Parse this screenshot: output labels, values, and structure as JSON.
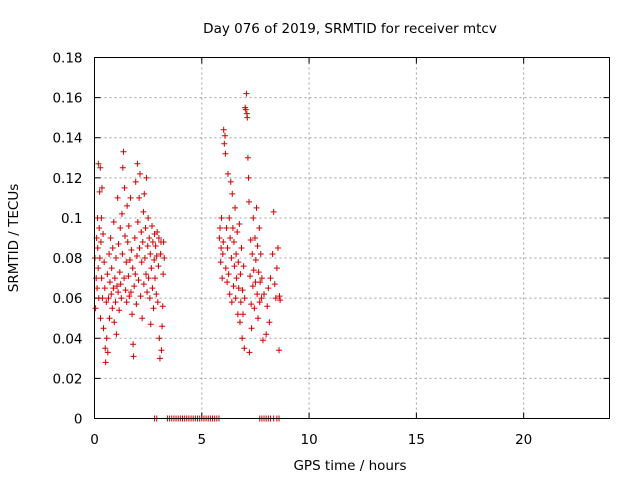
{
  "chart_data": {
    "type": "scatter",
    "title": "Day 076 of 2019, SRMTID for receiver mtcv",
    "xlabel": "GPS time / hours",
    "ylabel": "SRMTID / TECUs",
    "xlim": [
      0,
      24
    ],
    "ylim": [
      0,
      0.18
    ],
    "xticks": [
      "0",
      "5",
      "10",
      "15",
      "20"
    ],
    "yticks": [
      "0",
      "0.02",
      "0.04",
      "0.06",
      "0.08",
      "0.1",
      "0.12",
      "0.14",
      "0.16",
      "0.18"
    ],
    "grid": true,
    "marker": "plus",
    "color": "#d00000",
    "series": [
      {
        "values": [
          [
            0.02,
            0.08
          ],
          [
            0.05,
            0.055
          ],
          [
            0.08,
            0.07
          ],
          [
            0.1,
            0.09
          ],
          [
            0.12,
            0.065
          ],
          [
            0.14,
            0.1
          ],
          [
            0.15,
            0.085
          ],
          [
            0.17,
            0.075
          ],
          [
            0.18,
            0.127
          ],
          [
            0.2,
            0.06
          ],
          [
            0.22,
            0.095
          ],
          [
            0.24,
            0.113
          ],
          [
            0.25,
            0.08
          ],
          [
            0.27,
            0.125
          ],
          [
            0.28,
            0.05
          ],
          [
            0.3,
            0.088
          ],
          [
            0.32,
            0.1
          ],
          [
            0.33,
            0.07
          ],
          [
            0.35,
            0.115
          ],
          [
            0.37,
            0.06
          ],
          [
            0.4,
            0.092
          ],
          [
            0.42,
            0.045
          ],
          [
            0.45,
            0.078
          ],
          [
            0.48,
            0.065
          ],
          [
            0.5,
            0.035
          ],
          [
            0.52,
            0.028
          ],
          [
            0.55,
            0.058
          ],
          [
            0.57,
            0.04
          ],
          [
            0.6,
            0.072
          ],
          [
            0.62,
            0.033
          ],
          [
            0.65,
            0.06
          ],
          [
            0.68,
            0.082
          ],
          [
            0.7,
            0.05
          ],
          [
            0.72,
            0.068
          ],
          [
            0.75,
            0.09
          ],
          [
            0.78,
            0.062
          ],
          [
            0.8,
            0.075
          ],
          [
            0.83,
            0.055
          ],
          [
            0.85,
            0.085
          ],
          [
            0.88,
            0.065
          ],
          [
            0.9,
            0.098
          ],
          [
            0.92,
            0.048
          ],
          [
            0.95,
            0.07
          ],
          [
            0.98,
            0.058
          ],
          [
            1.0,
            0.08
          ],
          [
            1.02,
            0.042
          ],
          [
            1.05,
            0.066
          ],
          [
            1.08,
            0.11
          ],
          [
            1.1,
            0.063
          ],
          [
            1.12,
            0.087
          ],
          [
            1.15,
            0.054
          ],
          [
            1.18,
            0.073
          ],
          [
            1.2,
            0.095
          ],
          [
            1.22,
            0.067
          ],
          [
            1.25,
            0.06
          ],
          [
            1.28,
            0.102
          ],
          [
            1.3,
            0.082
          ],
          [
            1.32,
            0.125
          ],
          [
            1.35,
            0.133
          ],
          [
            1.38,
            0.07
          ],
          [
            1.4,
            0.115
          ],
          [
            1.42,
            0.091
          ],
          [
            1.45,
            0.064
          ],
          [
            1.48,
            0.078
          ],
          [
            1.5,
            0.058
          ],
          [
            1.52,
            0.106
          ],
          [
            1.55,
            0.088
          ],
          [
            1.58,
            0.071
          ],
          [
            1.6,
            0.096
          ],
          [
            1.62,
            0.061
          ],
          [
            1.65,
            0.079
          ],
          [
            1.68,
            0.11
          ],
          [
            1.7,
            0.063
          ],
          [
            1.72,
            0.084
          ],
          [
            1.75,
            0.052
          ],
          [
            1.78,
            0.075
          ],
          [
            1.8,
            0.037
          ],
          [
            1.82,
            0.031
          ],
          [
            1.85,
            0.066
          ],
          [
            1.88,
            0.09
          ],
          [
            1.9,
            0.072
          ],
          [
            1.92,
            0.118
          ],
          [
            1.95,
            0.057
          ],
          [
            1.98,
            0.081
          ],
          [
            2.0,
            0.127
          ],
          [
            2.02,
            0.098
          ],
          [
            2.05,
            0.069
          ],
          [
            2.08,
            0.11
          ],
          [
            2.1,
            0.085
          ],
          [
            2.12,
            0.122
          ],
          [
            2.15,
            0.061
          ],
          [
            2.18,
            0.093
          ],
          [
            2.2,
            0.078
          ],
          [
            2.22,
            0.05
          ],
          [
            2.25,
            0.088
          ],
          [
            2.28,
            0.103
          ],
          [
            2.3,
            0.067
          ],
          [
            2.32,
            0.112
          ],
          [
            2.35,
            0.08
          ],
          [
            2.38,
            0.095
          ],
          [
            2.4,
            0.072
          ],
          [
            2.42,
            0.12
          ],
          [
            2.45,
            0.063
          ],
          [
            2.48,
            0.086
          ],
          [
            2.5,
            0.1
          ],
          [
            2.52,
            0.07
          ],
          [
            2.55,
            0.09
          ],
          [
            2.58,
            0.06
          ],
          [
            2.6,
            0.082
          ],
          [
            2.62,
            0.047
          ],
          [
            2.65,
            0.075
          ],
          [
            2.68,
            0.096
          ],
          [
            2.7,
            0.065
          ],
          [
            2.72,
            0.088
          ],
          [
            2.75,
            0.055
          ],
          [
            2.78,
            0.079
          ],
          [
            2.8,
            0.092
          ],
          [
            2.82,
            0.07
          ],
          [
            2.85,
            0.086
          ],
          [
            2.88,
            0.062
          ],
          [
            2.9,
            0.081
          ],
          [
            2.92,
            0.093
          ],
          [
            2.95,
            0.058
          ],
          [
            2.98,
            0.076
          ],
          [
            3.0,
            0.09
          ],
          [
            3.02,
            0.04
          ],
          [
            3.05,
            0.03
          ],
          [
            3.08,
            0.082
          ],
          [
            3.1,
            0.088
          ],
          [
            3.12,
            0.034
          ],
          [
            3.15,
            0.046
          ],
          [
            3.18,
            0.056
          ],
          [
            3.2,
            0.072
          ],
          [
            3.22,
            0.088
          ],
          [
            3.25,
            0.08
          ]
        ]
      },
      {
        "values": [
          [
            5.82,
            0.09
          ],
          [
            5.85,
            0.095
          ],
          [
            5.88,
            0.078
          ],
          [
            5.9,
            0.085
          ],
          [
            5.92,
            0.1
          ],
          [
            5.95,
            0.07
          ],
          [
            5.98,
            0.082
          ],
          [
            6.0,
            0.088
          ],
          [
            6.02,
            0.144
          ],
          [
            6.05,
            0.137
          ],
          [
            6.08,
            0.141
          ],
          [
            6.1,
            0.132
          ],
          [
            6.12,
            0.075
          ],
          [
            6.15,
            0.095
          ],
          [
            6.18,
            0.068
          ],
          [
            6.2,
            0.085
          ],
          [
            6.22,
            0.122
          ],
          [
            6.25,
            0.072
          ],
          [
            6.28,
            0.1
          ],
          [
            6.3,
            0.062
          ],
          [
            6.32,
            0.09
          ],
          [
            6.35,
            0.118
          ],
          [
            6.38,
            0.08
          ],
          [
            6.4,
            0.058
          ],
          [
            6.42,
            0.112
          ],
          [
            6.45,
            0.095
          ],
          [
            6.48,
            0.066
          ],
          [
            6.5,
            0.088
          ],
          [
            6.52,
            0.076
          ],
          [
            6.55,
            0.105
          ],
          [
            6.58,
            0.06
          ],
          [
            6.6,
            0.082
          ],
          [
            6.62,
            0.07
          ],
          [
            6.65,
            0.093
          ],
          [
            6.68,
            0.052
          ],
          [
            6.7,
            0.078
          ],
          [
            6.72,
            0.065
          ],
          [
            6.75,
            0.097
          ],
          [
            6.78,
            0.048
          ],
          [
            6.8,
            0.072
          ],
          [
            6.82,
            0.058
          ],
          [
            6.85,
            0.085
          ],
          [
            6.88,
            0.04
          ],
          [
            6.9,
            0.064
          ],
          [
            6.92,
            0.052
          ],
          [
            6.95,
            0.076
          ],
          [
            6.98,
            0.035
          ],
          [
            7.0,
            0.06
          ],
          [
            7.02,
            0.155
          ],
          [
            7.05,
            0.154
          ],
          [
            7.08,
            0.162
          ],
          [
            7.1,
            0.152
          ],
          [
            7.12,
            0.15
          ],
          [
            7.15,
            0.13
          ],
          [
            7.18,
            0.12
          ],
          [
            7.2,
            0.108
          ],
          [
            7.22,
            0.033
          ],
          [
            7.25,
            0.071
          ],
          [
            7.28,
            0.089
          ],
          [
            7.3,
            0.057
          ],
          [
            7.32,
            0.045
          ],
          [
            7.35,
            0.082
          ],
          [
            7.38,
            0.066
          ],
          [
            7.4,
            0.1
          ],
          [
            7.42,
            0.074
          ],
          [
            7.45,
            0.055
          ],
          [
            7.48,
            0.09
          ],
          [
            7.5,
            0.068
          ],
          [
            7.52,
            0.079
          ],
          [
            7.55,
            0.105
          ],
          [
            7.58,
            0.062
          ],
          [
            7.6,
            0.086
          ],
          [
            7.62,
            0.05
          ],
          [
            7.65,
            0.073
          ],
          [
            7.68,
            0.095
          ],
          [
            7.7,
            0.058
          ],
          [
            7.72,
            0.068
          ],
          [
            7.75,
            0.082
          ],
          [
            7.78,
            0.06
          ],
          [
            7.8,
            0.07
          ],
          [
            7.85,
            0.039
          ],
          [
            7.9,
            0.062
          ],
          [
            8.0,
            0.042
          ],
          [
            8.05,
            0.056
          ],
          [
            8.1,
            0.065
          ],
          [
            8.15,
            0.048
          ],
          [
            8.2,
            0.07
          ],
          [
            8.3,
            0.082
          ],
          [
            8.35,
            0.103
          ],
          [
            8.4,
            0.067
          ],
          [
            8.45,
            0.06
          ],
          [
            8.5,
            0.075
          ],
          [
            8.55,
            0.085
          ],
          [
            8.6,
            0.034
          ],
          [
            8.62,
            0.061
          ],
          [
            8.65,
            0.059
          ]
        ]
      },
      {
        "values": [
          [
            2.8,
            0
          ],
          [
            2.9,
            0
          ],
          [
            3.4,
            0
          ],
          [
            3.5,
            0
          ],
          [
            3.6,
            0
          ],
          [
            3.7,
            0
          ],
          [
            3.8,
            0
          ],
          [
            3.9,
            0
          ],
          [
            4.0,
            0
          ],
          [
            4.1,
            0
          ],
          [
            4.2,
            0
          ],
          [
            4.3,
            0
          ],
          [
            4.4,
            0
          ],
          [
            4.5,
            0
          ],
          [
            4.6,
            0
          ],
          [
            4.7,
            0
          ],
          [
            4.8,
            0
          ],
          [
            4.9,
            0
          ],
          [
            5.0,
            0
          ],
          [
            5.1,
            0
          ],
          [
            5.2,
            0
          ],
          [
            5.3,
            0
          ],
          [
            5.4,
            0
          ],
          [
            5.5,
            0
          ],
          [
            5.6,
            0
          ],
          [
            5.7,
            0
          ],
          [
            5.8,
            0
          ],
          [
            7.7,
            0
          ],
          [
            7.8,
            0
          ],
          [
            7.9,
            0
          ],
          [
            8.0,
            0
          ],
          [
            8.1,
            0
          ],
          [
            8.2,
            0
          ],
          [
            8.35,
            0
          ],
          [
            8.5,
            0
          ],
          [
            8.6,
            0
          ]
        ]
      }
    ]
  }
}
